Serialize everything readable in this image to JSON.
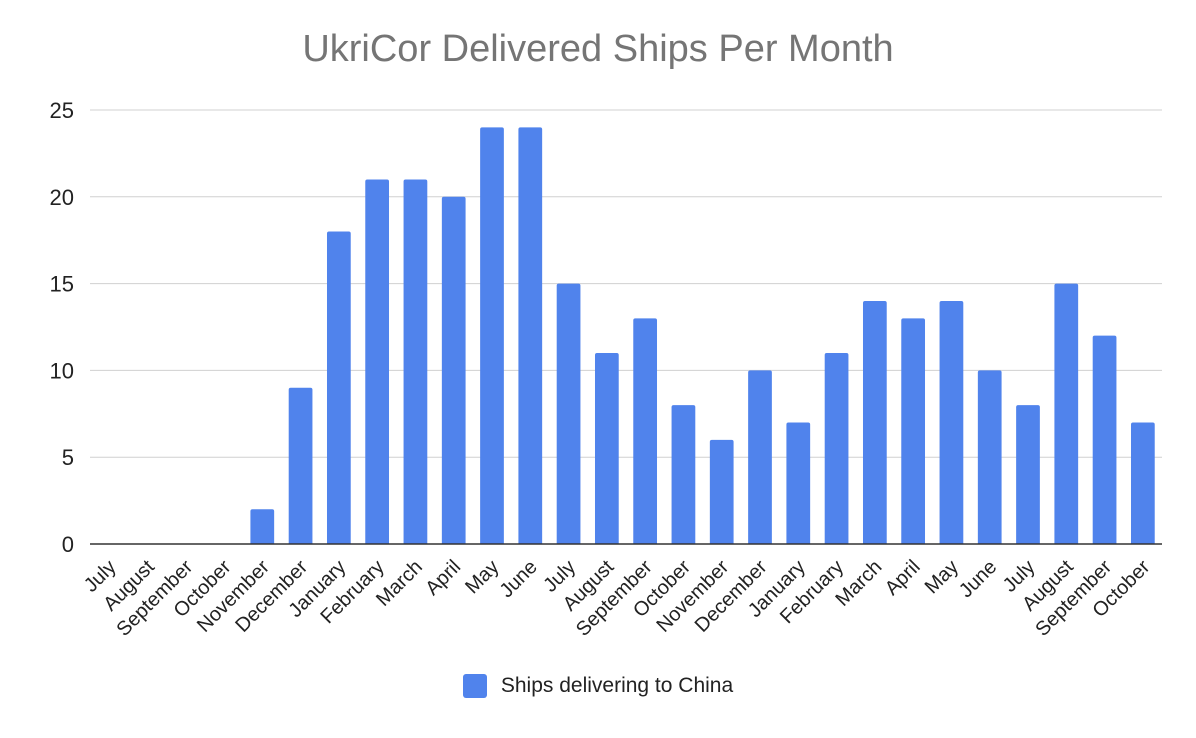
{
  "chart_data": {
    "type": "bar",
    "title": "UkriCor Delivered Ships Per Month",
    "xlabel": "",
    "ylabel": "",
    "ylim": [
      0,
      25
    ],
    "yticks": [
      0,
      5,
      10,
      15,
      20,
      25
    ],
    "grid": true,
    "legend_position": "bottom",
    "categories": [
      "July",
      "August",
      "September",
      "October",
      "November",
      "December",
      "January",
      "February",
      "March",
      "April",
      "May",
      "June",
      "July",
      "August",
      "September",
      "October",
      "November",
      "December",
      "January",
      "February",
      "March",
      "April",
      "May",
      "June",
      "July",
      "August",
      "September",
      "October"
    ],
    "series": [
      {
        "name": "Ships delivering to China",
        "color": "#5083ec",
        "values": [
          0,
          0,
          0,
          0,
          2,
          9,
          18,
          21,
          21,
          20,
          24,
          24,
          15,
          11,
          13,
          8,
          6,
          10,
          7,
          11,
          14,
          13,
          14,
          10,
          8,
          15,
          12,
          7
        ]
      }
    ]
  }
}
